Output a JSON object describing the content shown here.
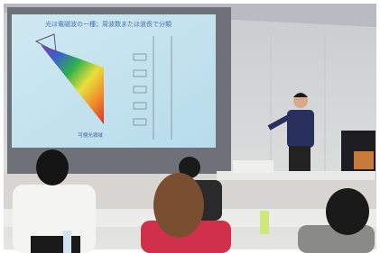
{
  "slide": {
    "title": "光は電磁波の一種；周波数または波長で分類",
    "label": "可視光領域"
  }
}
